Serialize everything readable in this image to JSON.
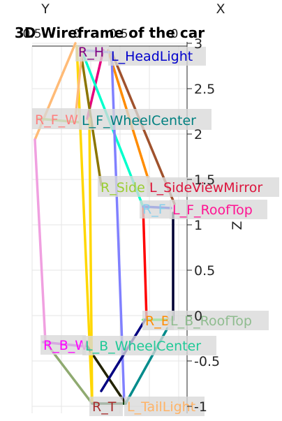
{
  "chart_data": {
    "type": "line",
    "title": "3D Wireframe of the car",
    "axis_letters": {
      "x": "X",
      "y": "Y",
      "z": "Z"
    },
    "zlabel": "Z",
    "z_ticks": [
      "3",
      "2.5",
      "2",
      "1.5",
      "1",
      "0.5",
      "0",
      "-0.5",
      "-1"
    ],
    "z_tick_values": [
      3,
      2.5,
      2,
      1.5,
      1,
      0.5,
      0,
      -0.5,
      -1
    ],
    "zlim": [
      -1,
      3
    ],
    "x_ticks": [
      "0.5",
      "0"
    ],
    "y_ticks": [
      "0.5",
      "0"
    ],
    "grid": true,
    "legend": "none",
    "points": [
      {
        "name": "R_HeadLight",
        "label": "R_H",
        "color": "#800080"
      },
      {
        "name": "L_HeadLight",
        "label": "L_HeadLight",
        "color": "#0000cc"
      },
      {
        "name": "R_F_WheelCenter",
        "label": "R_F_W",
        "color": "#ff7f7f"
      },
      {
        "name": "L_F_WheelCenter",
        "label": "L_F_WheelCenter",
        "color": "#008080"
      },
      {
        "name": "R_SideViewMirror",
        "label": "R_Side",
        "color": "#9acd32"
      },
      {
        "name": "L_SideViewMirror",
        "label": "L_SideViewMirror",
        "color": "#dc143c"
      },
      {
        "name": "R_F_RoofTop",
        "label": "R_F",
        "color": "#87ceeb"
      },
      {
        "name": "L_F_RoofTop",
        "label": "L_F_RoofTop",
        "color": "#ff1493"
      },
      {
        "name": "R_B_RoofTop",
        "label": "R_B",
        "color": "#ff8c00"
      },
      {
        "name": "L_B_RoofTop",
        "label": "L_B_RoofTop",
        "color": "#8fbc8f"
      },
      {
        "name": "R_B_WheelCenter",
        "label": "R_B_W",
        "color": "#ff00ff"
      },
      {
        "name": "L_B_WheelCenter",
        "label": "L_B_WheelCenter",
        "color": "#20c997"
      },
      {
        "name": "R_TailLight",
        "label": "R_T",
        "color": "#a52a2a"
      },
      {
        "name": "L_TailLight",
        "label": "L_TailLight",
        "color": "#ffb366"
      }
    ],
    "edges": [
      {
        "color": "#ffbb77"
      },
      {
        "color": "#ffd700"
      },
      {
        "color": "#e6007e"
      },
      {
        "color": "#8b7500"
      },
      {
        "color": "#00ffcc"
      },
      {
        "color": "#ff8c00"
      },
      {
        "color": "#a0522d"
      },
      {
        "color": "#8080ff"
      },
      {
        "color": "#f0a0e0"
      },
      {
        "color": "#a0d040"
      },
      {
        "color": "#ff0000"
      },
      {
        "color": "#0022ff"
      },
      {
        "color": "#000033"
      },
      {
        "color": "#00ff00"
      },
      {
        "color": "#cc00ff"
      },
      {
        "color": "#8faa70"
      },
      {
        "color": "#222200"
      },
      {
        "color": "#ffd700"
      },
      {
        "color": "#000080"
      },
      {
        "color": "#008b8b"
      },
      {
        "color": "#004400"
      },
      {
        "color": "#8080ff"
      },
      {
        "color": "#ffbb77"
      }
    ]
  }
}
